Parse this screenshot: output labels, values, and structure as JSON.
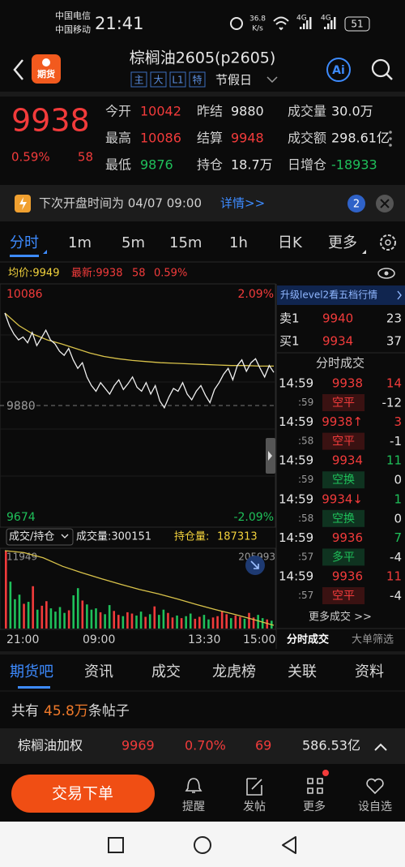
{
  "status_bar": {
    "carrier_1": "中国电信",
    "carrier_2": "中国移动",
    "time": "21:41",
    "speed": "36.8",
    "speed_unit": "K/s",
    "network_1": "4G",
    "network_2": "4G",
    "battery": "51"
  },
  "header": {
    "logo": "期货",
    "title": "棕榈油2605(p2605)",
    "tags": [
      "主",
      "大",
      "L1",
      "特"
    ],
    "session": "节假日",
    "ai": "Ai"
  },
  "quote": {
    "last": 9938,
    "change_pct": "0.59%",
    "change": 58,
    "fields": [
      {
        "label": "今开",
        "value": 10042,
        "color": "#f23b3b"
      },
      {
        "label": "昨结",
        "value": 9880,
        "color": "#e6e6e6"
      },
      {
        "label": "成交量",
        "value": "30.0万",
        "color": "#e6e6e6"
      },
      {
        "label": "最高",
        "value": 10086,
        "color": "#f23b3b"
      },
      {
        "label": "结算",
        "value": 9948,
        "color": "#f23b3b"
      },
      {
        "label": "成交额",
        "value": "298.61亿",
        "color": "#e6e6e6"
      },
      {
        "label": "最低",
        "value": 9876,
        "color": "#1fc05a"
      },
      {
        "label": "持仓",
        "value": "18.7万",
        "color": "#e6e6e6"
      },
      {
        "label": "日增仓",
        "value": -18933,
        "color": "#1fc05a"
      }
    ]
  },
  "notice": {
    "text": "下次开盘时间为 04/07 09:00",
    "link": "详情>>",
    "badge": 2
  },
  "periods": [
    "分时",
    "1m",
    "5m",
    "15m",
    "1h",
    "日K",
    "更多"
  ],
  "info": {
    "avg": "均价:9949",
    "latest": "最新:9938",
    "change": 58,
    "change_pct": "0.59%"
  },
  "intraday": {
    "high_label": 10086,
    "low_label": 9674,
    "ref_label": 9880,
    "high_pct": "2.09%",
    "low_pct": "-2.09%",
    "times": [
      "21:00",
      "09:00",
      "13:30",
      "15:00"
    ],
    "price": [
      10042,
      10020,
      10005,
      9995,
      10000,
      9990,
      10008,
      9985,
      9998,
      10012,
      9995,
      9988,
      9975,
      9968,
      9980,
      9960,
      9945,
      9955,
      9930,
      9915,
      9905,
      9920,
      9910,
      9900,
      9915,
      9925,
      9908,
      9918,
      9930,
      9912,
      9905,
      9920,
      9900,
      9915,
      9888,
      9876,
      9895,
      9910,
      9905,
      9920,
      9900,
      9890,
      9905,
      9915,
      9898,
      9885,
      9908,
      9920,
      9935,
      9945,
      9925,
      9950,
      9960,
      9940,
      9955,
      9962,
      9945,
      9930,
      9950,
      9938
    ],
    "avg": [
      10042,
      10020,
      10005,
      9995,
      9988,
      9980,
      9972,
      9966,
      9962,
      9959,
      9957,
      9955,
      9954,
      9953,
      9952,
      9951,
      9950,
      9950,
      9949,
      9949
    ],
    "volume_toggle": "成交/持仓",
    "volume_total": "成交量:300151",
    "oi_caption": "持仓量:",
    "oi_value": 187313,
    "volume_max": 11949,
    "oi_top": 205993,
    "volume": [
      11949,
      7200,
      4500,
      5200,
      3800,
      4100,
      6500,
      2900,
      3500,
      4200,
      3100,
      2600,
      3300,
      2400,
      2800,
      5100,
      6200,
      4300,
      3700,
      2900,
      3100,
      2500,
      2200,
      3600,
      2700,
      2100,
      1900,
      2500,
      2300,
      2000,
      2600,
      1800,
      2200,
      3400,
      2100,
      2900,
      2400,
      1700,
      2000,
      1600,
      1900,
      2300,
      1500,
      1800,
      2100,
      1400,
      1700,
      1900,
      2600,
      2200,
      1600,
      2000,
      1800,
      1500,
      2400,
      1700,
      2100,
      1600,
      1400,
      1200
    ],
    "open_interest": [
      205993,
      205500,
      204200,
      202100,
      200500,
      199000,
      197600,
      196300,
      195200,
      193900,
      192500,
      191200,
      190000,
      188700,
      187313
    ]
  },
  "side_panel": {
    "upgrade": "升级level2看五档行情",
    "book": [
      {
        "side": "卖1",
        "price": 9940,
        "qty": 23
      },
      {
        "side": "买1",
        "price": 9934,
        "qty": 37
      }
    ],
    "trades_title": "分时成交",
    "trades": [
      {
        "time": "14:59",
        "price": 9938,
        "volume": 14,
        "volume_color": "#f23b3b",
        "sub_time": ":59",
        "action": "空平",
        "action_color": "#f23b3b",
        "change": -12
      },
      {
        "time": "14:59",
        "price": "9938↑",
        "volume": 3,
        "volume_color": "#f23b3b",
        "sub_time": ":58",
        "action": "空平",
        "action_color": "#f23b3b",
        "change": -1
      },
      {
        "time": "14:59",
        "price": 9934,
        "volume": 11,
        "volume_color": "#1fc05a",
        "sub_time": ":59",
        "action": "空换",
        "action_color": "#1fc05a",
        "change": 0
      },
      {
        "time": "14:59",
        "price": "9934↓",
        "volume": 1,
        "volume_color": "#1fc05a",
        "sub_time": ":58",
        "action": "空换",
        "action_color": "#1fc05a",
        "change": 0
      },
      {
        "time": "14:59",
        "price": 9936,
        "volume": 7,
        "volume_color": "#1fc05a",
        "sub_time": ":57",
        "action": "多平",
        "action_color": "#1fc05a",
        "change": -4
      },
      {
        "time": "14:59",
        "price": 9936,
        "volume": 11,
        "volume_color": "#f23b3b",
        "sub_time": ":57",
        "action": "空平",
        "action_color": "#f23b3b",
        "change": -4
      }
    ],
    "more": "更多成交 >>",
    "tabs": [
      "分时成交",
      "大单筛选"
    ]
  },
  "sections": [
    "期货吧",
    "资讯",
    "成交",
    "龙虎榜",
    "关联",
    "资料"
  ],
  "posts": {
    "prefix": "共有",
    "count": "45.8万",
    "suffix": "条帖子"
  },
  "index_bar": {
    "name": "棕榈油加权",
    "price": 9969,
    "change_pct": "0.70%",
    "change": 69,
    "amount": "586.53亿"
  },
  "actions": {
    "trade": "交易下单",
    "buttons": [
      "提醒",
      "发帖",
      "更多",
      "设自选"
    ]
  }
}
